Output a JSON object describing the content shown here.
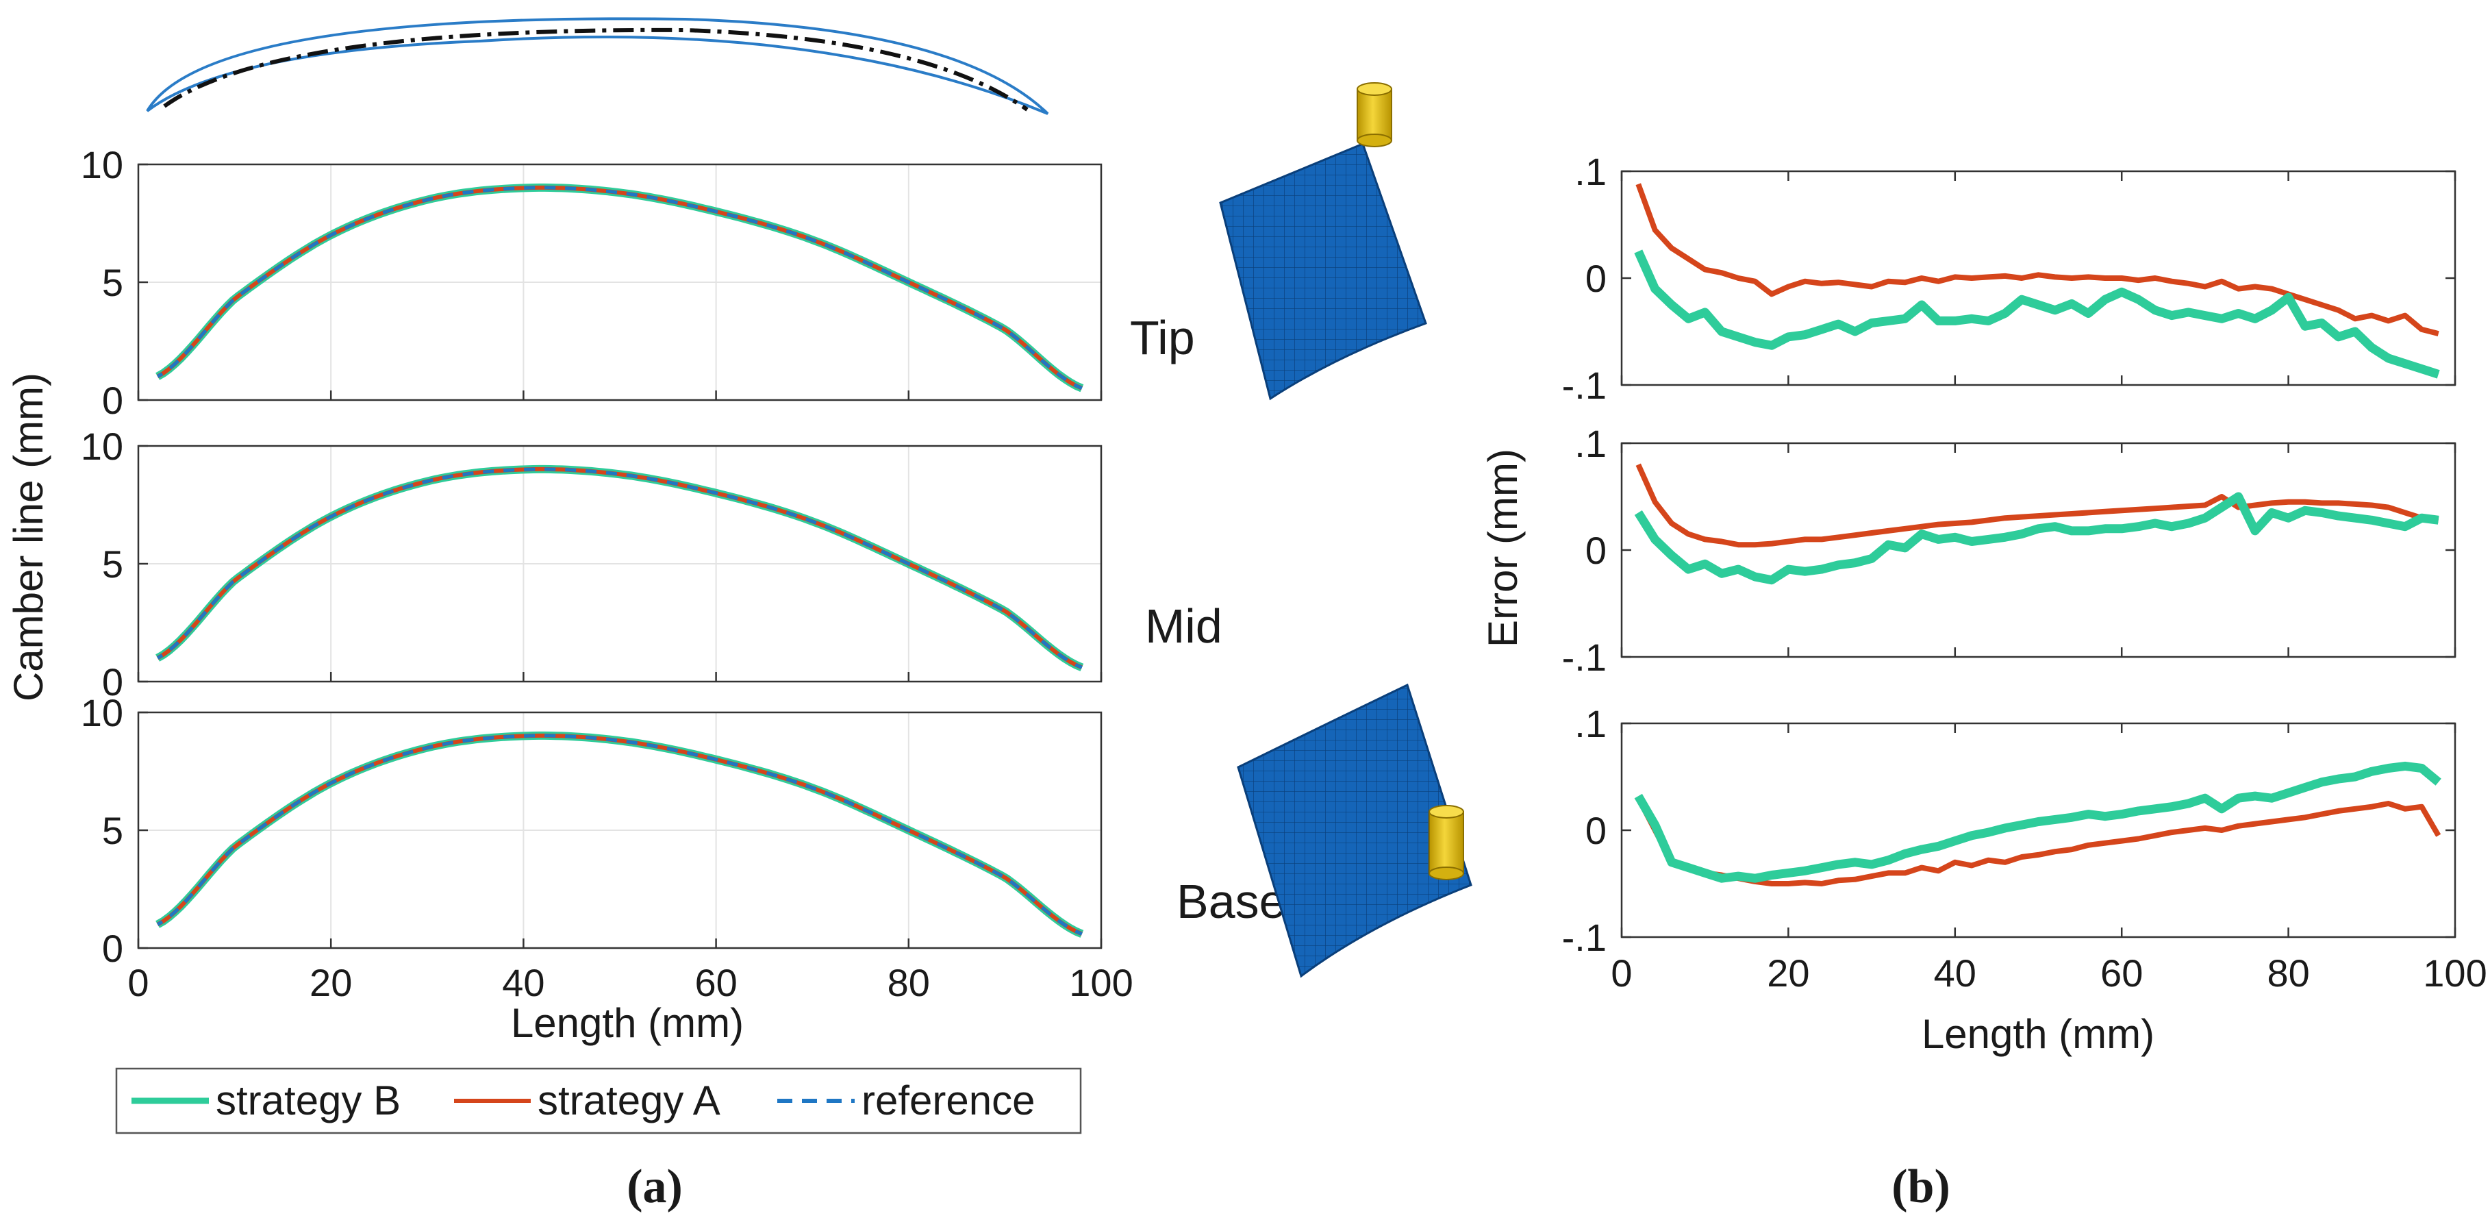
{
  "figure": {
    "caption_a": "(a)",
    "caption_b": "(b)",
    "colors": {
      "strategy_b": "#2ecc9a",
      "strategy_a": "#d5451b",
      "reference": "#1f77c4",
      "airfoil_outline": "#2a7cc7",
      "airfoil_camber": "#111111",
      "blade_mesh": "#1565b8",
      "tool": "#e8c21a",
      "grid": "#e3e3e3",
      "axis": "#333333"
    },
    "icons": {
      "airfoil": "airfoil-section-icon",
      "blade_tip": "blade-mesh-tip-icon",
      "blade_base": "blade-mesh-base-icon",
      "tool": "cutting-tool-icon"
    }
  },
  "chart_data": [
    {
      "id": "camber",
      "type": "line",
      "panel": "a",
      "xlabel": "Length (mm)",
      "ylabel": "Camber line (mm)",
      "xlim": [
        0,
        100
      ],
      "xticks": [
        0,
        20,
        40,
        60,
        80,
        100
      ],
      "ylim": [
        0,
        10
      ],
      "yticks": [
        0,
        5,
        10
      ],
      "grid": true,
      "legend": {
        "placement": "bottom",
        "entries": [
          "strategy B",
          "strategy A",
          "reference"
        ]
      },
      "subplots": [
        {
          "label": "Tip",
          "x": [
            2,
            10,
            20,
            30,
            40,
            50,
            60,
            70,
            80,
            90,
            98
          ],
          "y": [
            1.0,
            4.3,
            7.0,
            8.5,
            9.0,
            8.8,
            8.0,
            6.8,
            5.0,
            3.0,
            0.5
          ]
        },
        {
          "label": "Mid",
          "x": [
            2,
            10,
            20,
            30,
            40,
            50,
            60,
            70,
            80,
            90,
            98
          ],
          "y": [
            1.0,
            4.3,
            7.0,
            8.5,
            9.0,
            8.8,
            8.0,
            6.8,
            5.0,
            3.0,
            0.6
          ]
        },
        {
          "label": "Base",
          "x": [
            2,
            10,
            20,
            30,
            40,
            50,
            60,
            70,
            80,
            90,
            98
          ],
          "y": [
            1.0,
            4.3,
            7.0,
            8.5,
            9.0,
            8.8,
            8.0,
            6.8,
            5.0,
            3.0,
            0.6
          ]
        }
      ]
    },
    {
      "id": "error",
      "type": "line",
      "panel": "b",
      "xlabel": "Length (mm)",
      "ylabel": "Error (mm)",
      "xlim": [
        0,
        100
      ],
      "xticks": [
        0,
        20,
        40,
        60,
        80,
        100
      ],
      "ylim": [
        -0.1,
        0.1
      ],
      "yticks": [
        -0.1,
        0,
        0.1
      ],
      "grid": false,
      "x": [
        2,
        4,
        6,
        8,
        10,
        12,
        14,
        16,
        18,
        20,
        22,
        24,
        26,
        28,
        30,
        32,
        34,
        36,
        38,
        40,
        42,
        44,
        46,
        48,
        50,
        52,
        54,
        56,
        58,
        60,
        62,
        64,
        66,
        68,
        70,
        72,
        74,
        76,
        78,
        80,
        82,
        84,
        86,
        88,
        90,
        92,
        94,
        96,
        98
      ],
      "subplots": [
        {
          "label": "Tip",
          "series": [
            {
              "name": "strategy A",
              "values": [
                0.088,
                0.045,
                0.028,
                0.018,
                0.008,
                0.005,
                0.0,
                -0.003,
                -0.015,
                -0.008,
                -0.003,
                -0.005,
                -0.004,
                -0.006,
                -0.008,
                -0.003,
                -0.004,
                0.0,
                -0.003,
                0.001,
                0.0,
                0.001,
                0.002,
                0.0,
                0.003,
                0.001,
                0.0,
                0.001,
                0.0,
                0.0,
                -0.002,
                0.0,
                -0.003,
                -0.005,
                -0.008,
                -0.003,
                -0.01,
                -0.008,
                -0.01,
                -0.015,
                -0.02,
                -0.025,
                -0.03,
                -0.038,
                -0.035,
                -0.04,
                -0.035,
                -0.048,
                -0.052
              ]
            },
            {
              "name": "strategy B",
              "values": [
                0.025,
                -0.01,
                -0.025,
                -0.038,
                -0.032,
                -0.05,
                -0.055,
                -0.06,
                -0.063,
                -0.055,
                -0.053,
                -0.048,
                -0.043,
                -0.05,
                -0.042,
                -0.04,
                -0.038,
                -0.025,
                -0.04,
                -0.04,
                -0.038,
                -0.04,
                -0.033,
                -0.02,
                -0.025,
                -0.03,
                -0.024,
                -0.033,
                -0.02,
                -0.013,
                -0.02,
                -0.03,
                -0.035,
                -0.032,
                -0.035,
                -0.038,
                -0.033,
                -0.038,
                -0.03,
                -0.018,
                -0.045,
                -0.042,
                -0.055,
                -0.05,
                -0.065,
                -0.075,
                -0.08,
                -0.085,
                -0.09
              ]
            }
          ]
        },
        {
          "label": "Mid",
          "series": [
            {
              "name": "strategy A",
              "values": [
                0.08,
                0.045,
                0.025,
                0.015,
                0.01,
                0.008,
                0.005,
                0.005,
                0.006,
                0.008,
                0.01,
                0.01,
                0.012,
                0.014,
                0.016,
                0.018,
                0.02,
                0.022,
                0.024,
                0.025,
                0.026,
                0.028,
                0.03,
                0.031,
                0.032,
                0.033,
                0.034,
                0.035,
                0.036,
                0.037,
                0.038,
                0.039,
                0.04,
                0.041,
                0.042,
                0.05,
                0.04,
                0.042,
                0.044,
                0.045,
                0.045,
                0.044,
                0.044,
                0.043,
                0.042,
                0.04,
                0.035,
                0.03,
                0.028
              ]
            },
            {
              "name": "strategy B",
              "values": [
                0.035,
                0.01,
                -0.005,
                -0.018,
                -0.013,
                -0.022,
                -0.018,
                -0.025,
                -0.028,
                -0.018,
                -0.02,
                -0.018,
                -0.014,
                -0.012,
                -0.008,
                0.005,
                0.002,
                0.015,
                0.01,
                0.012,
                0.008,
                0.01,
                0.012,
                0.015,
                0.02,
                0.022,
                0.018,
                0.018,
                0.02,
                0.02,
                0.022,
                0.025,
                0.022,
                0.025,
                0.03,
                0.04,
                0.05,
                0.018,
                0.035,
                0.03,
                0.037,
                0.035,
                0.032,
                0.03,
                0.028,
                0.025,
                0.022,
                0.03,
                0.028
              ]
            }
          ]
        },
        {
          "label": "Base",
          "series": [
            {
              "name": "strategy A",
              "values": [
                0.03,
                0.0,
                -0.03,
                -0.035,
                -0.04,
                -0.042,
                -0.045,
                -0.048,
                -0.05,
                -0.05,
                -0.049,
                -0.05,
                -0.047,
                -0.046,
                -0.043,
                -0.04,
                -0.04,
                -0.035,
                -0.038,
                -0.03,
                -0.033,
                -0.028,
                -0.03,
                -0.025,
                -0.023,
                -0.02,
                -0.018,
                -0.014,
                -0.012,
                -0.01,
                -0.008,
                -0.005,
                -0.002,
                0.0,
                0.002,
                0.0,
                0.004,
                0.006,
                0.008,
                0.01,
                0.012,
                0.015,
                0.018,
                0.02,
                0.022,
                0.025,
                0.02,
                0.022,
                -0.005
              ]
            },
            {
              "name": "strategy B",
              "values": [
                0.032,
                0.005,
                -0.03,
                -0.035,
                -0.04,
                -0.045,
                -0.043,
                -0.045,
                -0.042,
                -0.04,
                -0.038,
                -0.035,
                -0.032,
                -0.03,
                -0.032,
                -0.028,
                -0.022,
                -0.018,
                -0.015,
                -0.01,
                -0.005,
                -0.002,
                0.002,
                0.005,
                0.008,
                0.01,
                0.012,
                0.015,
                0.013,
                0.015,
                0.018,
                0.02,
                0.022,
                0.025,
                0.03,
                0.02,
                0.03,
                0.032,
                0.03,
                0.035,
                0.04,
                0.045,
                0.048,
                0.05,
                0.055,
                0.058,
                0.06,
                0.058,
                0.045
              ]
            }
          ]
        }
      ]
    }
  ]
}
